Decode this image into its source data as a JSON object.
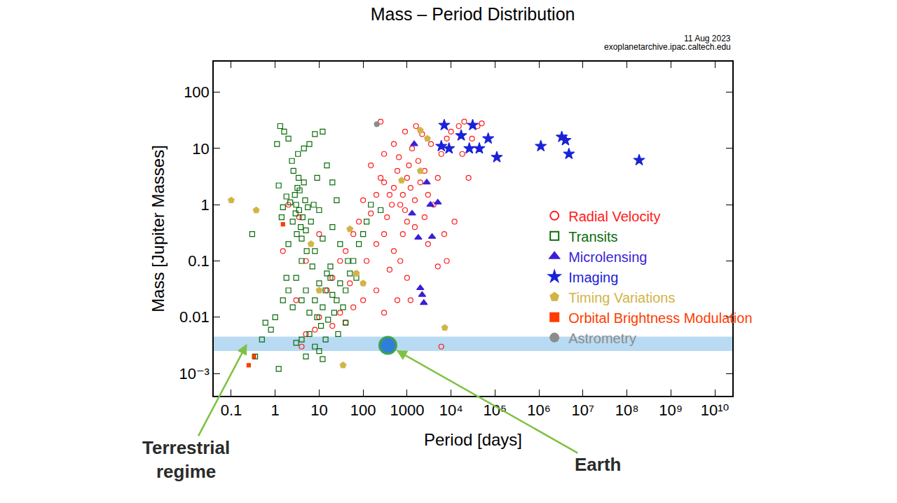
{
  "chart_data": {
    "type": "scatter",
    "title": "Mass – Period Distribution",
    "annotations": [
      "11 Aug 2023",
      "exoplanetarchive.ipac.caltech.edu"
    ],
    "x_label": "Period [days]",
    "y_label": "Mass [Jupiter Masses]",
    "log": true,
    "grid": false,
    "legend": "right",
    "xlim": [
      0.04,
      25000000000
    ],
    "ylim": [
      0.0004,
      350
    ],
    "xticks": [
      0.1,
      1,
      10,
      100,
      1000,
      {
        "value": 10000,
        "label": "10⁴"
      },
      {
        "value": 100000,
        "label": "10⁵"
      },
      {
        "value": 1000000,
        "label": "10⁶"
      },
      {
        "value": 10000000,
        "label": "10⁷"
      },
      {
        "value": 100000000,
        "label": "10⁸"
      },
      {
        "value": 1000000000,
        "label": "10⁹"
      },
      {
        "value": 10000000000,
        "label": "10¹⁰"
      }
    ],
    "yticks": [
      {
        "value": 0.001,
        "label": "10⁻³"
      },
      0.01,
      0.1,
      1,
      10,
      100
    ],
    "terrestrial_band": {
      "label": "Terrestrial regime",
      "ylim": [
        0.0025,
        0.0045
      ]
    },
    "earth": {
      "label": "Earth",
      "x": 365,
      "y": 0.00315
    },
    "series": [
      {
        "name": "Radial Velocity",
        "color": "#ff1a1a",
        "marker": "circle-open",
        "x": [
          500,
          800,
          1000,
          1200,
          700,
          600,
          1500,
          2000,
          900,
          400,
          300,
          1100,
          1800,
          2500,
          3000,
          350,
          450,
          650,
          1300,
          250,
          200,
          150,
          100,
          80,
          60,
          40,
          30,
          20,
          15,
          50,
          70,
          120,
          200,
          300,
          500,
          800,
          1500,
          2500,
          4000,
          5000,
          6000,
          8000,
          10000,
          15000,
          20000,
          30000,
          40000,
          50000,
          3500,
          2200,
          1600,
          900,
          500,
          300,
          150,
          1000,
          3000,
          700,
          400,
          200,
          100,
          60,
          30,
          10,
          8,
          5,
          20,
          40,
          300,
          1000,
          5000,
          8000,
          12000,
          25000,
          18000,
          7000,
          6000,
          4,
          3,
          5,
          10,
          3.5,
          1.5,
          2,
          250,
          600,
          1200
        ],
        "values": [
          2,
          1.5,
          3,
          2,
          1,
          4,
          1.2,
          2.5,
          0.8,
          1.5,
          2.5,
          5,
          6,
          4,
          1.5,
          0.6,
          1,
          7,
          10,
          3,
          1.5,
          0.7,
          1.2,
          0.5,
          0.3,
          0.15,
          0.1,
          0.05,
          0.03,
          0.04,
          0.06,
          0.1,
          0.2,
          0.3,
          0.15,
          0.3,
          0.4,
          0.6,
          1,
          3,
          8,
          15,
          20,
          25,
          30,
          15,
          25,
          28,
          12,
          18,
          25,
          20,
          12,
          8,
          5,
          0.5,
          0.2,
          0.1,
          0.07,
          0.03,
          0.02,
          0.015,
          0.012,
          0.01,
          0.006,
          0.005,
          0.007,
          0.008,
          0.012,
          0.05,
          0.08,
          0.1,
          0.5,
          3,
          8,
          0.3,
          0.003,
          0.003,
          0.02,
          0.1,
          0.3,
          0.6,
          0.15,
          1,
          30,
          0.02,
          0.02
        ]
      },
      {
        "name": "Transits",
        "color": "#0b6b0b",
        "marker": "square-open",
        "x": [
          3,
          3.5,
          2.8,
          4.2,
          3.2,
          2.5,
          4.8,
          3.8,
          2.2,
          5.5,
          3.1,
          2.9,
          3.6,
          4.5,
          1.8,
          6.5,
          3.4,
          2.6,
          1.5,
          4,
          5,
          7.5,
          1.2,
          2.4,
          3.3,
          1.1,
          1.3,
          1.6,
          2,
          4.5,
          8,
          12,
          15,
          6,
          9,
          20,
          10,
          25,
          1.4,
          5.2,
          3,
          5,
          8,
          10,
          12,
          15,
          20,
          6,
          4,
          7,
          9,
          14,
          18,
          25,
          30,
          2,
          2.5,
          1.5,
          1,
          0.8,
          0.6,
          11,
          16,
          22,
          35,
          40,
          50,
          60,
          80,
          100,
          120,
          150,
          250,
          6,
          4,
          3,
          8,
          10,
          5,
          12,
          1.2,
          0.5,
          0.35,
          0.3,
          2,
          4,
          8,
          12,
          20,
          30,
          45,
          70,
          1.8,
          18,
          40,
          27,
          14
        ],
        "values": [
          1,
          0.8,
          1.5,
          0.6,
          2,
          0.5,
          1.2,
          0.4,
          1.1,
          0.9,
          0.3,
          0.7,
          1.8,
          2.5,
          1.4,
          0.5,
          3,
          4,
          0.9,
          0.25,
          0.35,
          1,
          2.2,
          6,
          8,
          12,
          25,
          20,
          15,
          10,
          18,
          20,
          5,
          12,
          3,
          2.5,
          0.8,
          1.2,
          0.6,
          0.15,
          0.05,
          0.03,
          0.02,
          0.04,
          0.015,
          0.06,
          0.025,
          0.012,
          0.02,
          0.08,
          0.01,
          0.03,
          0.05,
          0.02,
          0.04,
          0.03,
          0.015,
          0.02,
          0.01,
          0.006,
          0.008,
          0.007,
          0.009,
          0.012,
          0.015,
          0.03,
          0.06,
          0.1,
          0.2,
          0.3,
          0.5,
          1,
          0.8,
          0.005,
          0.004,
          0.0035,
          0.003,
          0.0025,
          0.002,
          0.0018,
          0.0012,
          0.004,
          0.002,
          0.3,
          0.2,
          0.1,
          0.15,
          0.25,
          0.4,
          0.2,
          0.1,
          0.05,
          0.05,
          0.08,
          0.008,
          0.005,
          0.004
        ]
      },
      {
        "name": "Microlensing",
        "color": "#3a1fd6",
        "marker": "triangle-up",
        "x": [
          3400,
          1300,
          1800,
          3700,
          2000,
          2400,
          2200,
          1450,
          5000,
          2800
        ],
        "values": [
          1,
          0.7,
          0.26,
          0.27,
          0.033,
          0.018,
          0.025,
          12,
          1.1,
          2.5
        ]
      },
      {
        "name": "Imaging",
        "color": "#1a22d8",
        "marker": "star",
        "x": [
          7000,
          31000,
          6000,
          9000,
          17000,
          26000,
          44000,
          70000,
          110000,
          1100000,
          3300000,
          4000000,
          4800000,
          190000000
        ],
        "values": [
          26,
          26,
          11,
          10,
          17,
          10,
          10,
          15,
          7,
          11,
          16,
          14,
          8,
          6.2
        ]
      },
      {
        "name": "Timing Variations",
        "color": "#d2b448",
        "marker": "pentagon",
        "x": [
          0.1,
          0.37,
          7200,
          35,
          10,
          50,
          6.5,
          2000,
          2900,
          750,
          2000,
          100,
          70
        ],
        "values": [
          1.2,
          0.8,
          0.0065,
          0.0014,
          0.03,
          0.37,
          0.2,
          21,
          15,
          2.7,
          4,
          0.04,
          0.06
        ]
      },
      {
        "name": "Orbital Brightness Modulation",
        "color": "#ff3c00",
        "marker": "square",
        "x": [
          0.25,
          0.33,
          1.5
        ],
        "values": [
          0.0014,
          0.002,
          0.45
        ]
      },
      {
        "name": "Astrometry",
        "color": "#8c8c8c",
        "marker": "circle",
        "x": [
          205
        ],
        "values": [
          27
        ]
      }
    ]
  }
}
